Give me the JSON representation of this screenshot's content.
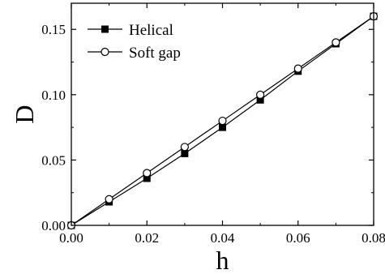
{
  "chart_data": {
    "type": "line",
    "title": "",
    "xlabel": "h",
    "ylabel": "D",
    "xlim": [
      0.0,
      0.08
    ],
    "ylim": [
      0.0,
      0.17
    ],
    "xticks": [
      0.0,
      0.02,
      0.04,
      0.06,
      0.08
    ],
    "xtick_labels": [
      "0.00",
      "0.02",
      "0.04",
      "0.06",
      "0.08"
    ],
    "yticks": [
      0.0,
      0.05,
      0.1,
      0.15
    ],
    "ytick_labels": [
      "0.00",
      "0.05",
      "0.10",
      "0.15"
    ],
    "grid": false,
    "legend_position": "top-left",
    "series": [
      {
        "name": "Helical",
        "marker": "filled-square",
        "color": "#000000",
        "x": [
          0.0,
          0.01,
          0.02,
          0.03,
          0.04,
          0.05,
          0.06,
          0.07,
          0.08
        ],
        "y": [
          0.0,
          0.018,
          0.036,
          0.055,
          0.075,
          0.096,
          0.118,
          0.139,
          0.16
        ]
      },
      {
        "name": "Soft gap",
        "marker": "open-circle",
        "color": "#000000",
        "x": [
          0.0,
          0.01,
          0.02,
          0.03,
          0.04,
          0.05,
          0.06,
          0.07,
          0.08
        ],
        "y": [
          0.0,
          0.02,
          0.04,
          0.06,
          0.08,
          0.1,
          0.12,
          0.14,
          0.16
        ]
      }
    ]
  }
}
